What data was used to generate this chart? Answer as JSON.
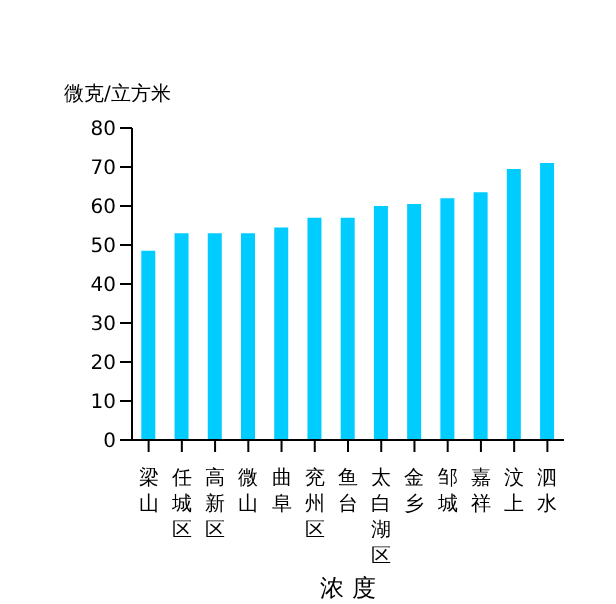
{
  "chart_data": {
    "type": "bar",
    "ylabel": "微克/立方米",
    "xlabel": "浓 度",
    "categories": [
      "梁山",
      "任城区",
      "高新区",
      "微山",
      "曲阜",
      "兖州区",
      "鱼台",
      "太白湖区",
      "金乡",
      "邹城",
      "嘉祥",
      "汶上",
      "泗水"
    ],
    "values": [
      48.5,
      53,
      53,
      53,
      54.5,
      57,
      57,
      60,
      60.5,
      62,
      63.5,
      69.5,
      71
    ],
    "color": "#00ccff",
    "ylim": [
      0,
      80
    ],
    "yticks": [
      0,
      10,
      20,
      30,
      40,
      50,
      60,
      70,
      80
    ],
    "grid": false
  }
}
